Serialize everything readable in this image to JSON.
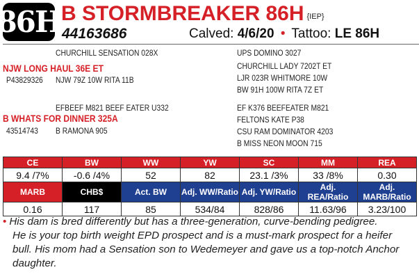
{
  "lot": "86H",
  "name": "B STORMBREAKER 86H",
  "designation": "{IEP}",
  "registration": "44163686",
  "calved_label": "Calved:",
  "calved_value": "4/6/20",
  "tattoo_label": "Tattoo:",
  "tattoo_value": "LE 86H",
  "pedigree": {
    "sire_sire": "CHURCHILL SENSATION 028X",
    "sire": "NJW LONG HAUL 36E ET",
    "sire_reg": "P43829326",
    "sire_dam": "NJW 79Z 10W RITA 11B",
    "ssgs": "UPS DOMINO 3027",
    "ssgd": "CHURCHILL LADY 7202T ET",
    "sdgs": "LJR 023R WHITMORE 10W",
    "sdgd": "BW 91H 100W RITA 7Z ET",
    "dam_sire": "EFBEEF M821 BEEF EATER U332",
    "dam_sire_line": "B WHATS FOR DINNER 325A",
    "dam_sire_reg": "43514743",
    "dam_dam": "B RAMONA 905",
    "dsgs": "EF K376 BEEFEATER M821",
    "dsgd": "FELTONS KATE P38",
    "ddgs": "CSU RAM DOMINATOR 4203",
    "ddgd": "B MISS NEON MOON 715"
  },
  "epd": {
    "row1_headers": [
      "CE",
      "BW",
      "WW",
      "YW",
      "SC",
      "MM",
      "REA"
    ],
    "row1_values": [
      "9.4 /7%",
      "-0.6 /4%",
      "52",
      "82",
      "23.1 /3%",
      "33 /8%",
      "0.30"
    ],
    "row2_headers": [
      "MARB",
      "CHB$",
      "Act. BW",
      "Adj. WW/Ratio",
      "Adj. YW/Ratio",
      "Adj. REA/Ratio",
      "Adj. MARB/Ratio"
    ],
    "row2_values": [
      "0.16",
      "117",
      "85",
      "534/84",
      "828/86",
      "11.63/96",
      "3.23/100"
    ]
  },
  "notes": [
    "His dam is bred differently but has a three-generation, curve-bending pedigree.",
    "He is your top birth weight EPD prospect and is a must-mark prospect for a heifer",
    "bull. His mom had a Sensation son to Wedemeyer and gave us a top-notch Anchor",
    "daughter."
  ],
  "colors": {
    "red": "#d62027",
    "blue": "#1f3f91",
    "black": "#000000"
  }
}
